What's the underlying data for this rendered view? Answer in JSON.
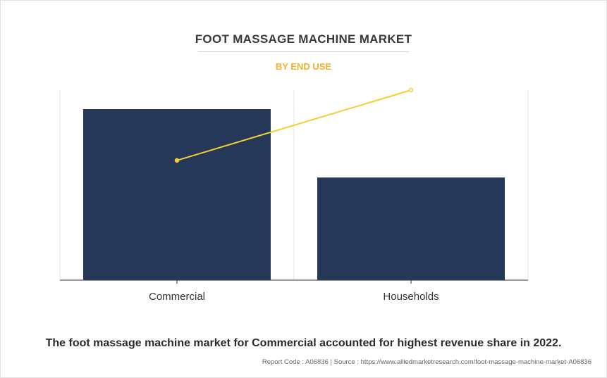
{
  "title": "FOOT MASSAGE MACHINE MARKET",
  "subtitle": "BY END USE",
  "caption": "The foot massage machine market for Commercial accounted for highest revenue share in 2022.",
  "source": "Report Code : A06836  |  Source : https://www.alliedmarketresearch.com/foot-massage-machine-market-A06836",
  "colors": {
    "bar": "#263859",
    "line": "#f5d033",
    "title": "#3a3a3a",
    "subtitle": "#f0b429"
  },
  "chart_data": {
    "type": "bar",
    "categories": [
      "Commercial",
      "Households"
    ],
    "series": [
      {
        "type": "bar",
        "values": [
          90,
          54
        ]
      },
      {
        "type": "line",
        "values": [
          63,
          100
        ]
      }
    ],
    "ylim": [
      0,
      100
    ],
    "grid": "vertical",
    "legend": "none"
  }
}
